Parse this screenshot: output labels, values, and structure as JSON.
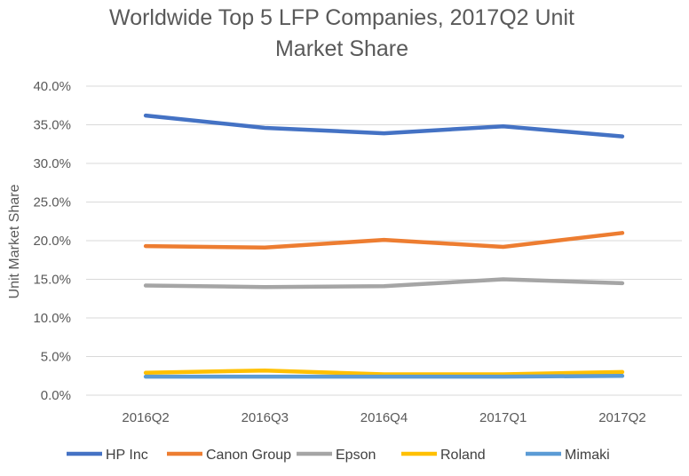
{
  "chart_data": {
    "type": "line",
    "title_lines": [
      "Worldwide Top 5 LFP Companies, 2017Q2 Unit",
      "Market Share"
    ],
    "xlabel": "",
    "ylabel": "Unit Market Share",
    "categories": [
      "2016Q2",
      "2016Q3",
      "2016Q4",
      "2017Q1",
      "2017Q2"
    ],
    "ylim": [
      0,
      40
    ],
    "yticks": [
      "0.0%",
      "5.0%",
      "10.0%",
      "15.0%",
      "20.0%",
      "25.0%",
      "30.0%",
      "35.0%",
      "40.0%"
    ],
    "grid": true,
    "legend_position": "bottom",
    "series": [
      {
        "name": "HP Inc",
        "color": "#4472C4",
        "values": [
          36.2,
          34.6,
          33.9,
          34.8,
          33.5
        ]
      },
      {
        "name": "Canon Group",
        "color": "#ED7D31",
        "values": [
          19.3,
          19.1,
          20.1,
          19.2,
          21.0
        ]
      },
      {
        "name": "Epson",
        "color": "#A5A5A5",
        "values": [
          14.2,
          14.0,
          14.1,
          15.0,
          14.5
        ]
      },
      {
        "name": "Roland",
        "color": "#FFC000",
        "values": [
          2.9,
          3.2,
          2.7,
          2.7,
          3.0
        ]
      },
      {
        "name": "Mimaki",
        "color": "#5B9BD5",
        "values": [
          2.4,
          2.4,
          2.4,
          2.4,
          2.5
        ]
      }
    ]
  }
}
